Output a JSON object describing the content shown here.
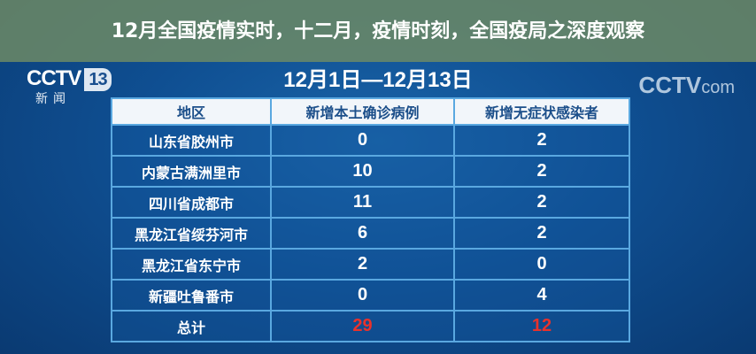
{
  "logo": {
    "text": "CCTV",
    "channel": "13",
    "subtitle": "新闻"
  },
  "watermark": {
    "brand": "CCTV",
    "suffix": "com"
  },
  "date_range": "12月1日—12月13日",
  "table": {
    "headers": [
      "地区",
      "新增本土确诊病例",
      "新增无症状感染者"
    ],
    "rows": [
      {
        "region": "山东省胶州市",
        "confirmed": "0",
        "asymptomatic": "2"
      },
      {
        "region": "内蒙古满洲里市",
        "confirmed": "10",
        "asymptomatic": "2"
      },
      {
        "region": "四川省成都市",
        "confirmed": "11",
        "asymptomatic": "2"
      },
      {
        "region": "黑龙江省绥芬河市",
        "confirmed": "6",
        "asymptomatic": "2"
      },
      {
        "region": "黑龙江省东宁市",
        "confirmed": "2",
        "asymptomatic": "0"
      },
      {
        "region": "新疆吐鲁番市",
        "confirmed": "0",
        "asymptomatic": "4"
      }
    ],
    "total": {
      "label": "总计",
      "confirmed": "29",
      "asymptomatic": "12"
    }
  },
  "overlay_title": "12月全国疫情实时，十二月，疫情时刻，全国疫局之深度观察",
  "colors": {
    "background": "#0f4f92",
    "header_text": "#1c4f8a",
    "total_value": "#e8322c",
    "overlay": "#708c64"
  }
}
